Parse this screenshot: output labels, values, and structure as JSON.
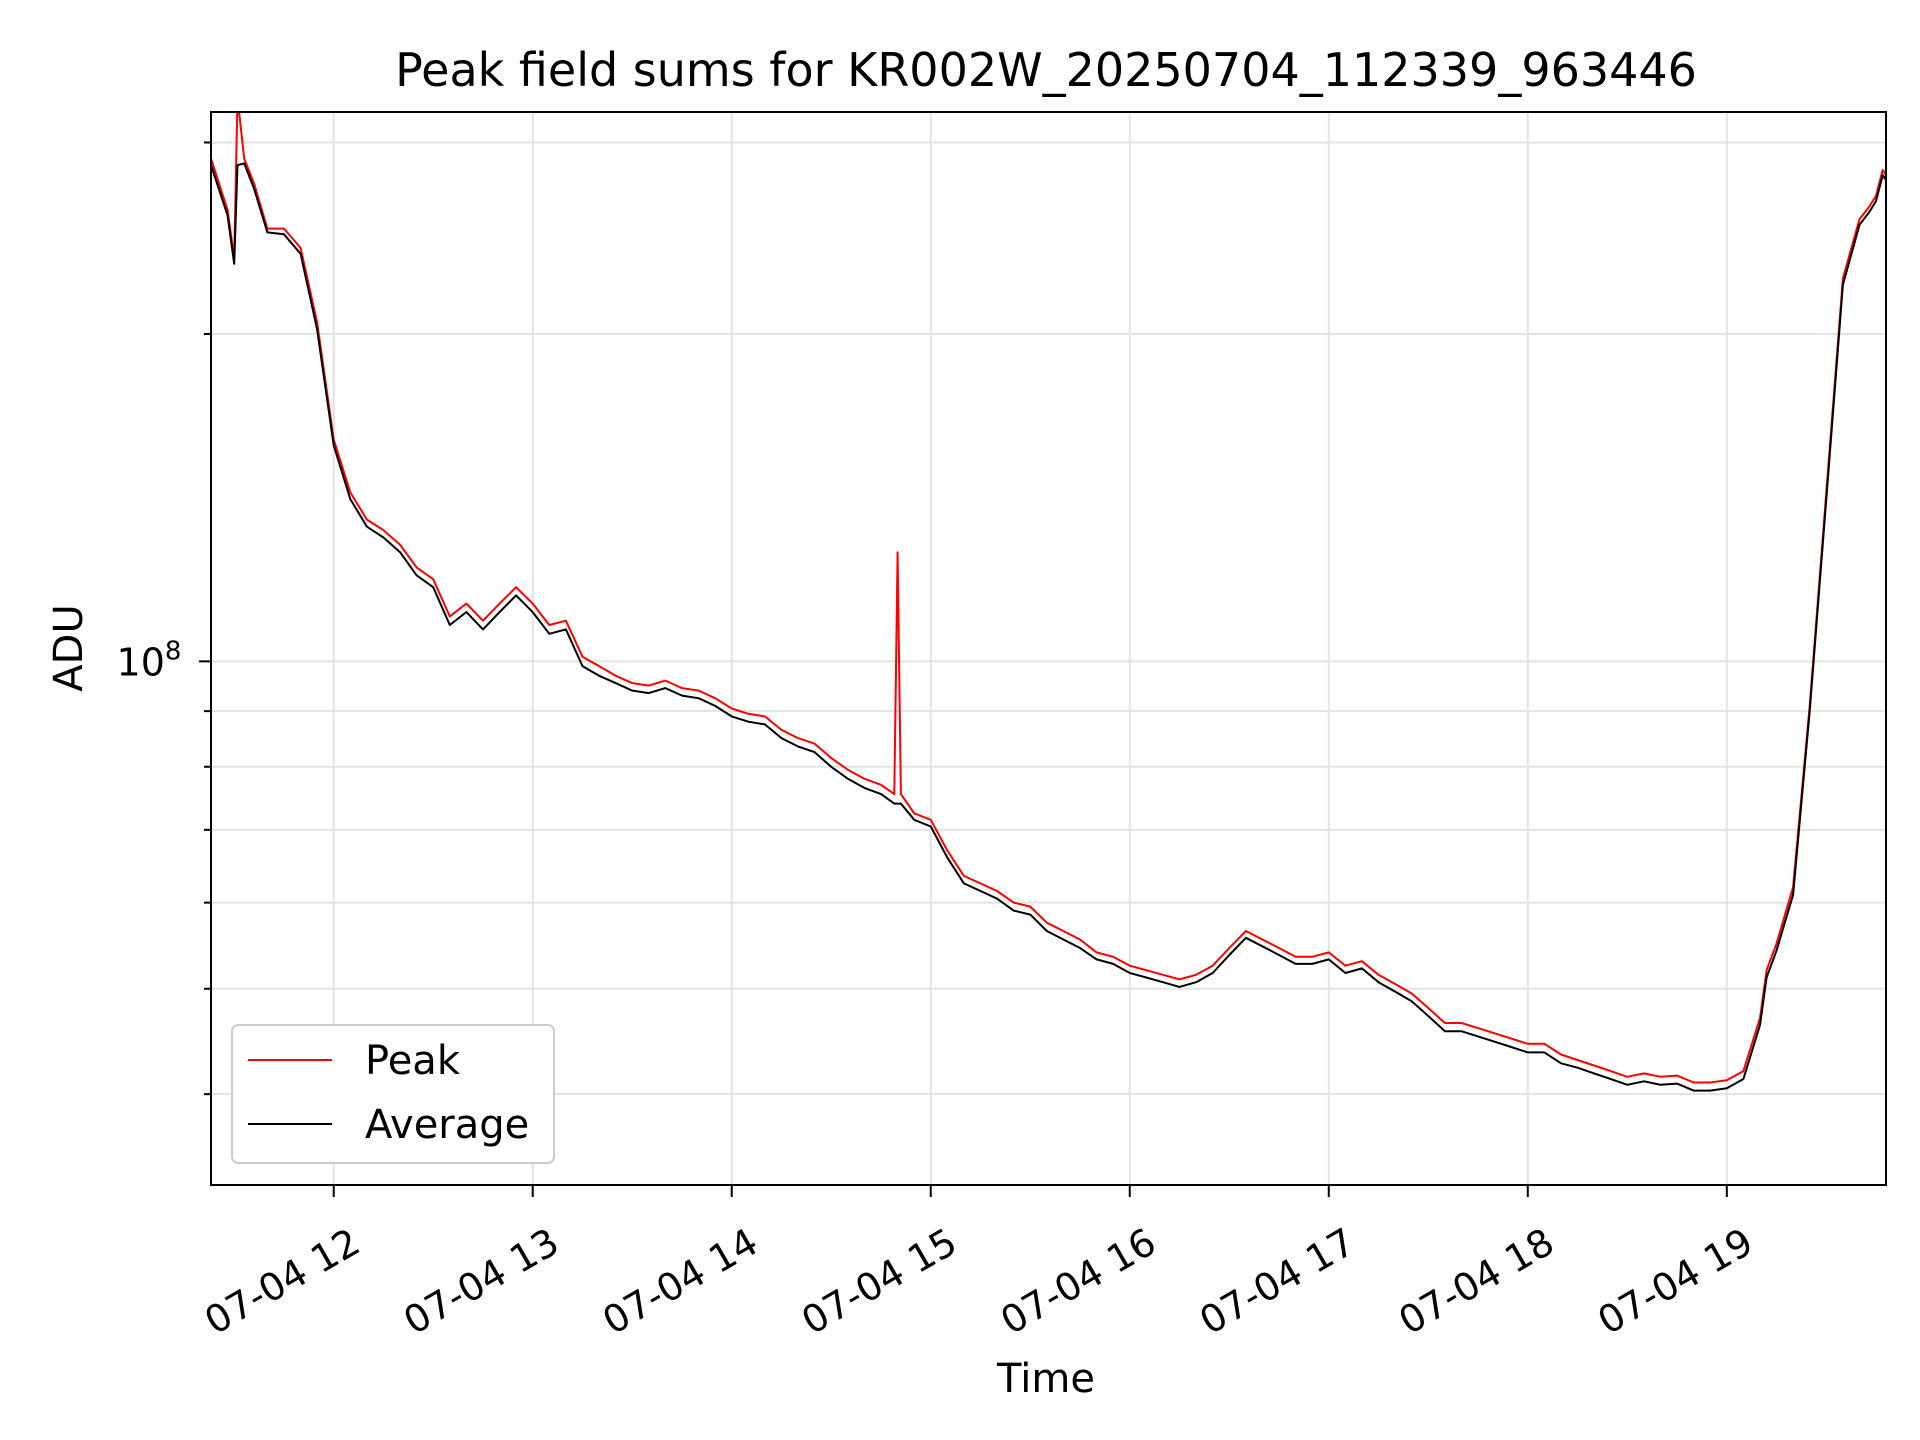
{
  "chart_data": {
    "type": "line",
    "title": "Peak field sums for KR002W_20250704_112339_963446",
    "xlabel": "Time",
    "ylabel": "ADU",
    "x_scale": "time",
    "y_scale": "log",
    "xlim": [
      "07-04 11:23",
      "07-04 19:48"
    ],
    "ylim": [
      33000000,
      320000000
    ],
    "x_ticks": [
      "07-04 12",
      "07-04 13",
      "07-04 14",
      "07-04 15",
      "07-04 16",
      "07-04 17",
      "07-04 18",
      "07-04 19"
    ],
    "y_tick_major_label": {
      "base": "10",
      "exp": "8"
    },
    "grid": true,
    "legend_position": "lower-left",
    "x": [
      "07-04 11:23",
      "07-04 11:28",
      "07-04 11:30",
      "07-04 11:31",
      "07-04 11:33",
      "07-04 11:36",
      "07-04 11:40",
      "07-04 11:45",
      "07-04 11:50",
      "07-04 11:55",
      "07-04 12:00",
      "07-04 12:05",
      "07-04 12:10",
      "07-04 12:15",
      "07-04 12:20",
      "07-04 12:25",
      "07-04 12:30",
      "07-04 12:35",
      "07-04 12:40",
      "07-04 12:45",
      "07-04 12:50",
      "07-04 12:55",
      "07-04 13:00",
      "07-04 13:05",
      "07-04 13:10",
      "07-04 13:15",
      "07-04 13:20",
      "07-04 13:25",
      "07-04 13:30",
      "07-04 13:35",
      "07-04 13:40",
      "07-04 13:45",
      "07-04 13:50",
      "07-04 13:55",
      "07-04 14:00",
      "07-04 14:05",
      "07-04 14:10",
      "07-04 14:15",
      "07-04 14:20",
      "07-04 14:25",
      "07-04 14:30",
      "07-04 14:35",
      "07-04 14:40",
      "07-04 14:45",
      "07-04 14:49",
      "07-04 14:50",
      "07-04 14:51",
      "07-04 14:55",
      "07-04 15:00",
      "07-04 15:05",
      "07-04 15:10",
      "07-04 15:15",
      "07-04 15:20",
      "07-04 15:25",
      "07-04 15:30",
      "07-04 15:35",
      "07-04 15:40",
      "07-04 15:45",
      "07-04 15:50",
      "07-04 15:55",
      "07-04 16:00",
      "07-04 16:05",
      "07-04 16:10",
      "07-04 16:15",
      "07-04 16:20",
      "07-04 16:25",
      "07-04 16:30",
      "07-04 16:35",
      "07-04 16:40",
      "07-04 16:45",
      "07-04 16:50",
      "07-04 16:55",
      "07-04 17:00",
      "07-04 17:05",
      "07-04 17:10",
      "07-04 17:15",
      "07-04 17:20",
      "07-04 17:25",
      "07-04 17:30",
      "07-04 17:35",
      "07-04 17:40",
      "07-04 17:45",
      "07-04 17:50",
      "07-04 17:55",
      "07-04 18:00",
      "07-04 18:05",
      "07-04 18:10",
      "07-04 18:15",
      "07-04 18:20",
      "07-04 18:25",
      "07-04 18:30",
      "07-04 18:35",
      "07-04 18:40",
      "07-04 18:45",
      "07-04 18:50",
      "07-04 18:55",
      "07-04 19:00",
      "07-04 19:05",
      "07-04 19:10",
      "07-04 19:12",
      "07-04 19:15",
      "07-04 19:20",
      "07-04 19:25",
      "07-04 19:30",
      "07-04 19:35",
      "07-04 19:40",
      "07-04 19:43",
      "07-04 19:45",
      "07-04 19:47",
      "07-04 19:48"
    ],
    "series": [
      {
        "name": "Peak",
        "color": "#ff0000",
        "values": [
          290000000,
          260000000,
          235000000,
          330000000,
          290000000,
          275000000,
          250000000,
          250000000,
          240000000,
          205000000,
          160000000,
          143000000,
          135000000,
          132000000,
          128000000,
          122000000,
          119000000,
          110000000,
          113000000,
          109000000,
          113000000,
          117000000,
          113000000,
          108000000,
          109000000,
          101000000,
          99000000,
          97000000,
          95500000,
          95000000,
          96000000,
          94500000,
          94000000,
          92500000,
          90500000,
          89500000,
          89000000,
          86500000,
          85000000,
          84000000,
          81500000,
          79500000,
          78000000,
          77000000,
          75500000,
          126000000,
          75500000,
          72500000,
          71500000,
          67000000,
          63500000,
          62500000,
          61500000,
          60000000,
          59500000,
          57500000,
          56500000,
          55500000,
          54000000,
          53500000,
          52500000,
          52000000,
          51500000,
          51000000,
          51500000,
          52500000,
          54500000,
          56500000,
          55500000,
          54500000,
          53500000,
          53500000,
          54000000,
          52500000,
          53000000,
          51500000,
          50500000,
          49500000,
          48000000,
          46500000,
          46500000,
          46000000,
          45500000,
          45000000,
          44500000,
          44500000,
          43500000,
          43000000,
          42500000,
          42000000,
          41500000,
          41800000,
          41500000,
          41600000,
          41000000,
          41000000,
          41200000,
          42000000,
          47000000,
          52000000,
          55000000,
          62000000,
          91000000,
          143000000,
          225000000,
          255000000,
          262000000,
          268000000,
          283000000,
          280000000
        ]
      },
      {
        "name": "Average",
        "color": "#000000",
        "values": [
          286000000,
          257000000,
          232000000,
          286000000,
          287000000,
          272000000,
          248000000,
          247000000,
          237000000,
          202000000,
          158000000,
          141000000,
          133000000,
          130000000,
          126000000,
          120000000,
          117000000,
          108000000,
          111000000,
          107000000,
          111000000,
          115000000,
          111000000,
          106000000,
          107000000,
          99000000,
          97000000,
          95500000,
          94000000,
          93500000,
          94500000,
          93000000,
          92500000,
          91000000,
          89000000,
          88000000,
          87500000,
          85000000,
          83500000,
          82500000,
          80000000,
          78000000,
          76500000,
          75500000,
          74000000,
          74000000,
          74000000,
          71500000,
          70500000,
          66000000,
          62500000,
          61500000,
          60500000,
          59000000,
          58500000,
          56500000,
          55500000,
          54500000,
          53200000,
          52700000,
          51700000,
          51200000,
          50700000,
          50200000,
          50700000,
          51700000,
          53700000,
          55700000,
          54700000,
          53700000,
          52700000,
          52700000,
          53200000,
          51700000,
          52200000,
          50700000,
          49700000,
          48700000,
          47200000,
          45700000,
          45700000,
          45200000,
          44700000,
          44200000,
          43700000,
          43700000,
          42700000,
          42300000,
          41800000,
          41300000,
          40800000,
          41100000,
          40800000,
          40900000,
          40300000,
          40300000,
          40500000,
          41300000,
          46300000,
          51200000,
          54200000,
          61000000,
          90000000,
          141000000,
          222000000,
          252000000,
          259000000,
          265000000,
          280000000,
          277000000
        ]
      }
    ]
  }
}
